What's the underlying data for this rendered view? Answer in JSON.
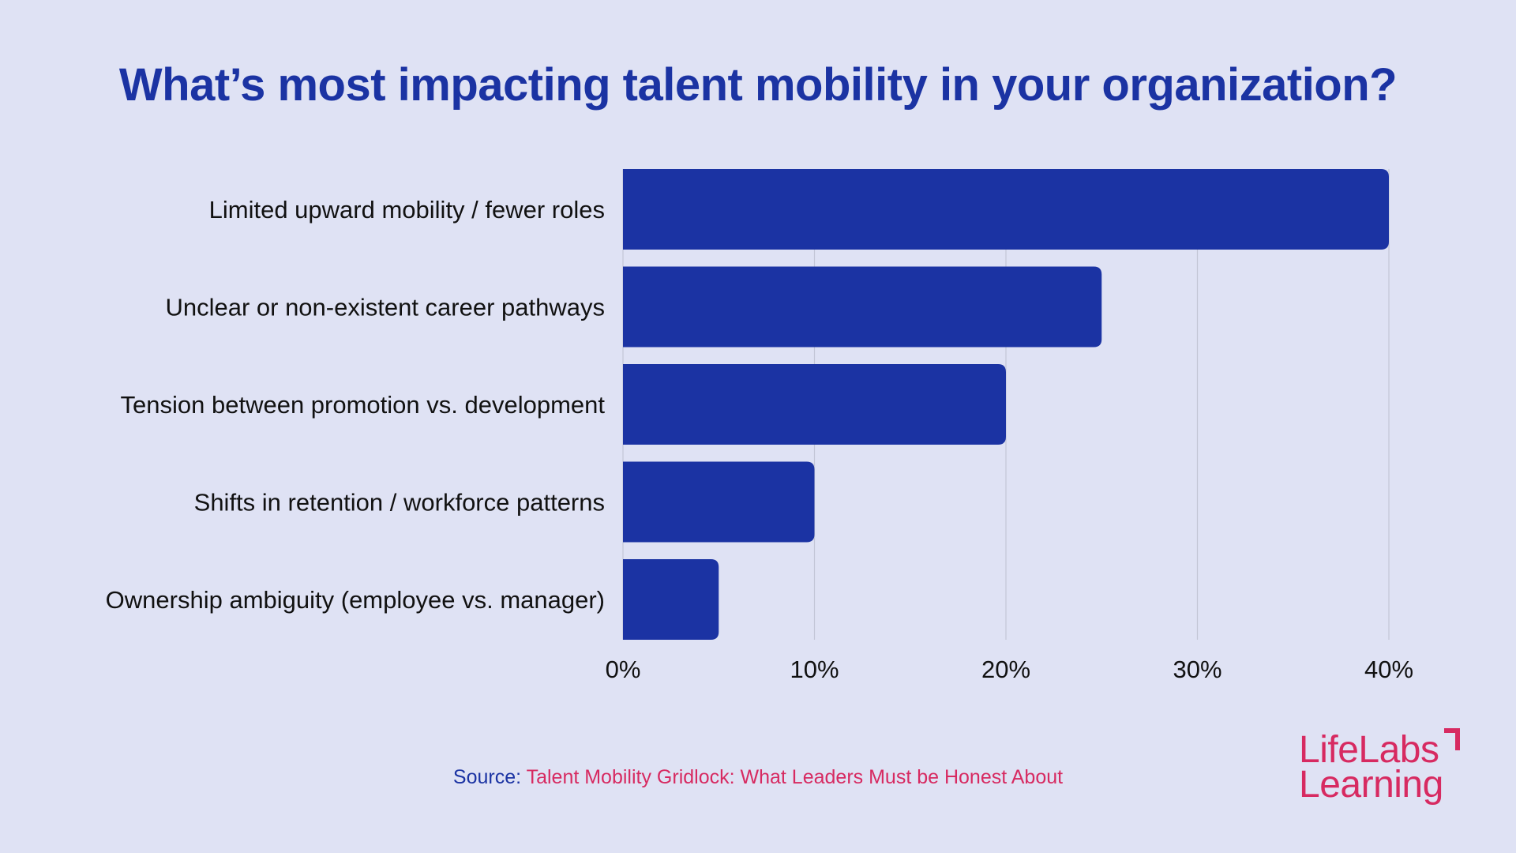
{
  "colors": {
    "background": "#dfe2f4",
    "bar": "#1b33a3",
    "title": "#1b33a3",
    "accent": "#d72a61",
    "grid": "#c3c6d6"
  },
  "chart_data": {
    "type": "bar",
    "orientation": "horizontal",
    "title": "What’s most impacting talent mobility in your organization?",
    "categories": [
      "Limited upward mobility / fewer roles",
      "Unclear or non-existent career pathways",
      "Tension between promotion vs. development",
      "Shifts in retention / workforce patterns",
      "Ownership ambiguity (employee vs. manager)"
    ],
    "values": [
      40,
      25,
      20,
      10,
      5
    ],
    "xlim": [
      0,
      40
    ],
    "xticks": [
      0,
      10,
      20,
      30,
      40
    ],
    "xtick_labels": [
      "0%",
      "10%",
      "20%",
      "30%",
      "40%"
    ],
    "grid": true,
    "legend": "none"
  },
  "source": {
    "prefix": "Source: ",
    "link_text": "Talent Mobility Gridlock: What Leaders Must be Honest About"
  },
  "logo": {
    "line1": "LifeLabs",
    "line2": "Learning"
  }
}
